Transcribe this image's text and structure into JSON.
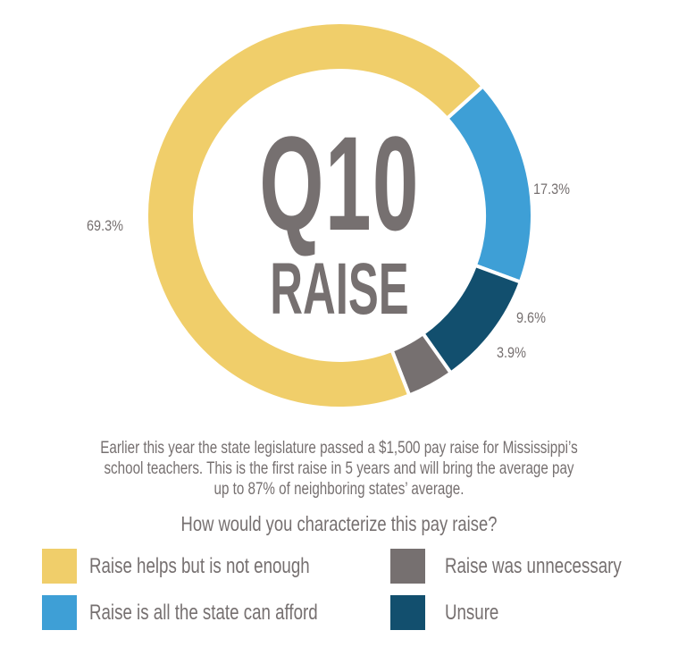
{
  "chart_data": {
    "type": "pie",
    "variant": "donut",
    "title": "Q10 RAISE",
    "categories": [
      "Raise helps but is not enough",
      "Raise is all the state can afford",
      "Unsure",
      "Raise was unnecessary"
    ],
    "values": [
      69.3,
      17.3,
      9.6,
      3.9
    ],
    "value_labels": [
      "69.3%",
      "17.3%",
      "9.6%",
      "3.9%"
    ],
    "colors": [
      "#F0CE6A",
      "#3E9FD6",
      "#124F6E",
      "#767070"
    ],
    "legend_position": "bottom"
  },
  "center": {
    "line1": "Q10",
    "line2": "RAISE"
  },
  "labels": {
    "yellow": "69.3%",
    "blue": "17.3%",
    "dark": "9.6%",
    "gray": "3.9%"
  },
  "description": {
    "line1": "Earlier this year the state legislature passed a $1,500 pay raise for Mississippi’s",
    "line2": "school teachers. This is the first raise in 5 years and will bring the average pay",
    "line3": "up to 87% of neighboring states’ average."
  },
  "question": "How would you characterize this pay raise?",
  "legend": [
    {
      "label": "Raise helps but is not enough",
      "color": "#F0CE6A"
    },
    {
      "label": "Raise was unnecessary",
      "color": "#767070"
    },
    {
      "label": "Raise is all the state can afford",
      "color": "#3E9FD6"
    },
    {
      "label": "Unsure",
      "color": "#124F6E"
    }
  ]
}
